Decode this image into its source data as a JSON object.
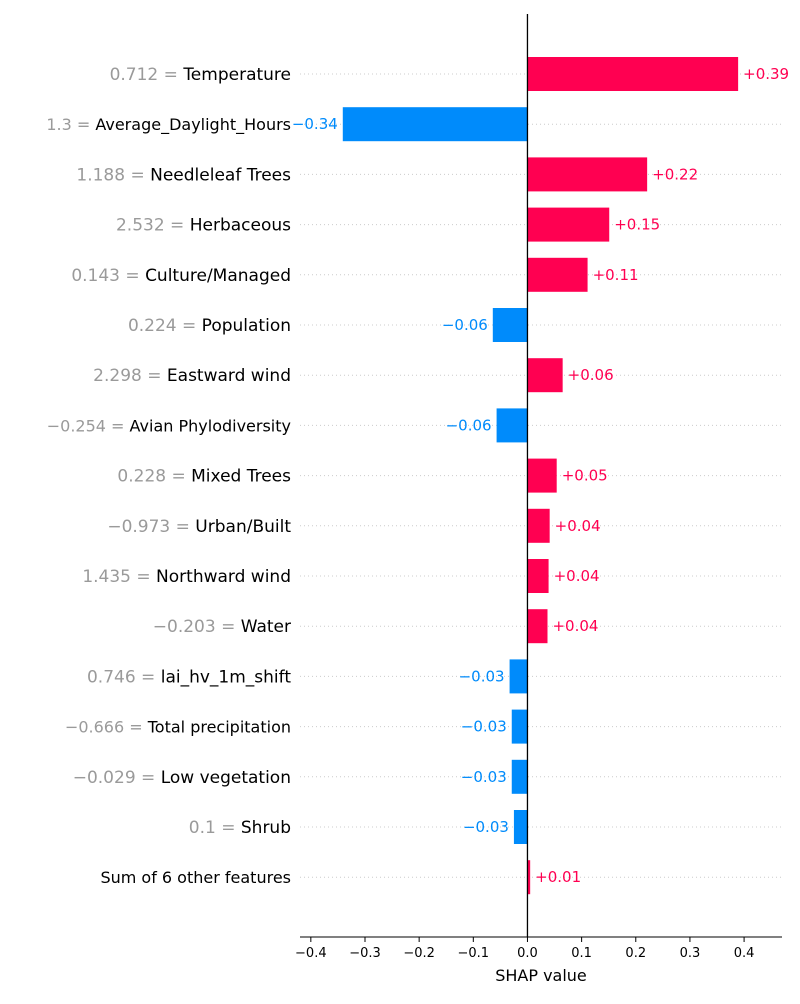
{
  "chart_data": {
    "type": "bar",
    "orientation": "horizontal",
    "xlabel": "SHAP value",
    "xlim": [
      -0.42,
      0.47
    ],
    "xticks": [
      -0.4,
      -0.3,
      -0.2,
      -0.1,
      0.0,
      0.1,
      0.2,
      0.3,
      0.4
    ],
    "xtick_labels": [
      "−0.4",
      "−0.3",
      "−0.2",
      "−0.1",
      "0.0",
      "0.1",
      "0.2",
      "0.3",
      "0.4"
    ],
    "grid": "dotted horizontal row lines",
    "colors": {
      "positive": "#ff0051",
      "negative": "#008bfb",
      "feature_value": "#9a9a9a",
      "feature_name": "#000000",
      "grid": "#cccccc",
      "axis": "#000000"
    },
    "rows": [
      {
        "feature_value": "0.712",
        "feature": "Temperature",
        "value": 0.389,
        "label": "+0.39"
      },
      {
        "feature_value": "1.3",
        "feature": "Average_Daylight_Hours",
        "value": -0.341,
        "label": "−0.34"
      },
      {
        "feature_value": "1.188",
        "feature": "Needleleaf Trees",
        "value": 0.221,
        "label": "+0.22"
      },
      {
        "feature_value": "2.532",
        "feature": "Herbaceous",
        "value": 0.151,
        "label": "+0.15"
      },
      {
        "feature_value": "0.143",
        "feature": "Culture/Managed",
        "value": 0.111,
        "label": "+0.11"
      },
      {
        "feature_value": "0.224",
        "feature": "Population",
        "value": -0.064,
        "label": "−0.06"
      },
      {
        "feature_value": "2.298",
        "feature": "Eastward wind",
        "value": 0.065,
        "label": "+0.06"
      },
      {
        "feature_value": "−0.254",
        "feature": "Avian Phylodiversity",
        "value": -0.057,
        "label": "−0.06"
      },
      {
        "feature_value": "0.228",
        "feature": "Mixed Trees",
        "value": 0.054,
        "label": "+0.05"
      },
      {
        "feature_value": "−0.973",
        "feature": "Urban/Built",
        "value": 0.041,
        "label": "+0.04"
      },
      {
        "feature_value": "1.435",
        "feature": "Northward wind",
        "value": 0.039,
        "label": "+0.04"
      },
      {
        "feature_value": "−0.203",
        "feature": "Water",
        "value": 0.037,
        "label": "+0.04"
      },
      {
        "feature_value": "0.746",
        "feature": "lai_hv_1m_shift",
        "value": -0.033,
        "label": "−0.03"
      },
      {
        "feature_value": "−0.666",
        "feature": "Total precipitation",
        "value": -0.029,
        "label": "−0.03"
      },
      {
        "feature_value": "−0.029",
        "feature": "Low vegetation",
        "value": -0.029,
        "label": "−0.03"
      },
      {
        "feature_value": "0.1",
        "feature": "Shrub",
        "value": -0.025,
        "label": "−0.03"
      },
      {
        "feature_value": "",
        "feature": "Sum of 6 other features",
        "value": 0.005,
        "label": "+0.01"
      }
    ]
  }
}
